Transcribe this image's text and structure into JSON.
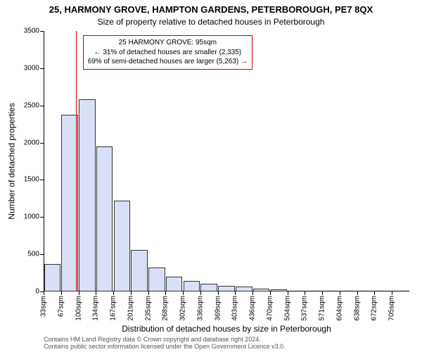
{
  "title_main": "25, HARMONY GROVE, HAMPTON GARDENS, PETERBOROUGH, PE7 8QX",
  "title_sub": "Size of property relative to detached houses in Peterborough",
  "y_axis_label": "Number of detached properties",
  "x_axis_label": "Distribution of detached houses by size in Peterborough",
  "footer_line1": "Contains HM Land Registry data © Crown copyright and database right 2024.",
  "footer_line2": "Contains public sector information licensed under the Open Government Licence v3.0.",
  "info_box": {
    "line1": "25 HARMONY GROVE: 95sqm",
    "line2": "← 31% of detached houses are smaller (2,335)",
    "line3": "69% of semi-detached houses are larger (5,263) →",
    "border_color": "#d00000"
  },
  "chart": {
    "type": "bar",
    "ylim": [
      0,
      3500
    ],
    "ytick_step": 500,
    "bar_fill": "#d9e0f5",
    "bar_border": "#333333",
    "background_color": "#ffffff",
    "marker_color": "#d00000",
    "marker_x_value": 95,
    "x_min": 33,
    "x_bin_width": 33.6,
    "categories": [
      "33sqm",
      "67sqm",
      "100sqm",
      "134sqm",
      "167sqm",
      "201sqm",
      "235sqm",
      "268sqm",
      "302sqm",
      "336sqm",
      "369sqm",
      "403sqm",
      "436sqm",
      "470sqm",
      "504sqm",
      "537sqm",
      "571sqm",
      "604sqm",
      "638sqm",
      "672sqm",
      "705sqm"
    ],
    "values": [
      370,
      2370,
      2580,
      1950,
      1220,
      560,
      320,
      200,
      140,
      100,
      80,
      70,
      40,
      30,
      0,
      0,
      0,
      0,
      0,
      0,
      0
    ],
    "bar_width_ratio": 0.95,
    "tick_fontsize": 10,
    "label_fontsize": 12,
    "title_fontsize": 13
  }
}
